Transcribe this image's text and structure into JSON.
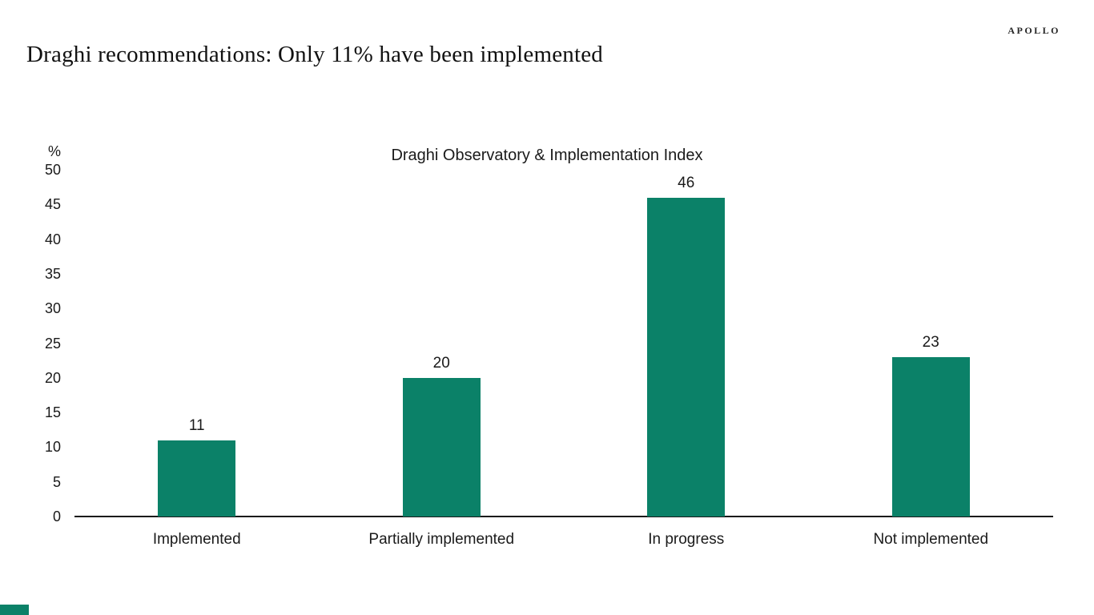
{
  "header": {
    "title": "Draghi recommendations: Only 11% have been implemented",
    "logo": "APOLLO"
  },
  "theme": {
    "accent_color": "#0b8168",
    "text_color": "#1a1a1a",
    "background_color": "#ffffff"
  },
  "chart_data": {
    "type": "bar",
    "title": "Draghi Observatory & Implementation Index",
    "xlabel": "",
    "ylabel": "%",
    "categories": [
      "Implemented",
      "Partially implemented",
      "In progress",
      "Not implemented"
    ],
    "values": [
      11,
      20,
      46,
      23
    ],
    "ylim": [
      0,
      50
    ],
    "ytick_step": 5,
    "yticks": [
      0,
      5,
      10,
      15,
      20,
      25,
      30,
      35,
      40,
      45,
      50
    ],
    "grid": false,
    "legend": false,
    "show_value_labels": true,
    "bar_color": "#0b8168"
  }
}
